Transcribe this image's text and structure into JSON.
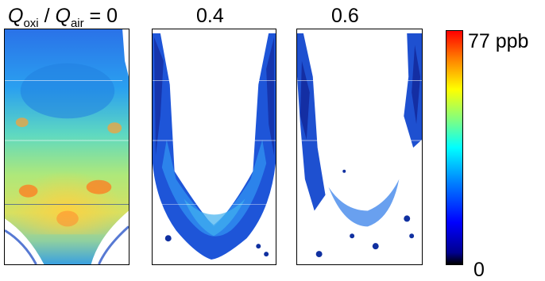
{
  "panels": [
    {
      "title_q1": "Q",
      "title_sub1": "oxi",
      "title_mid": " / ",
      "title_q2": "Q",
      "title_sub2": "air",
      "title_val": " = 0"
    },
    {
      "title": "0.4"
    },
    {
      "title": "0.6"
    }
  ],
  "colorbar": {
    "max_label": "77 ppb",
    "min_label": "0",
    "colormap": "jet",
    "colors": [
      "#000000",
      "#00008f",
      "#0000ff",
      "#0080ff",
      "#00ffff",
      "#80ff80",
      "#ffff00",
      "#ff8000",
      "#ff0000"
    ]
  }
}
